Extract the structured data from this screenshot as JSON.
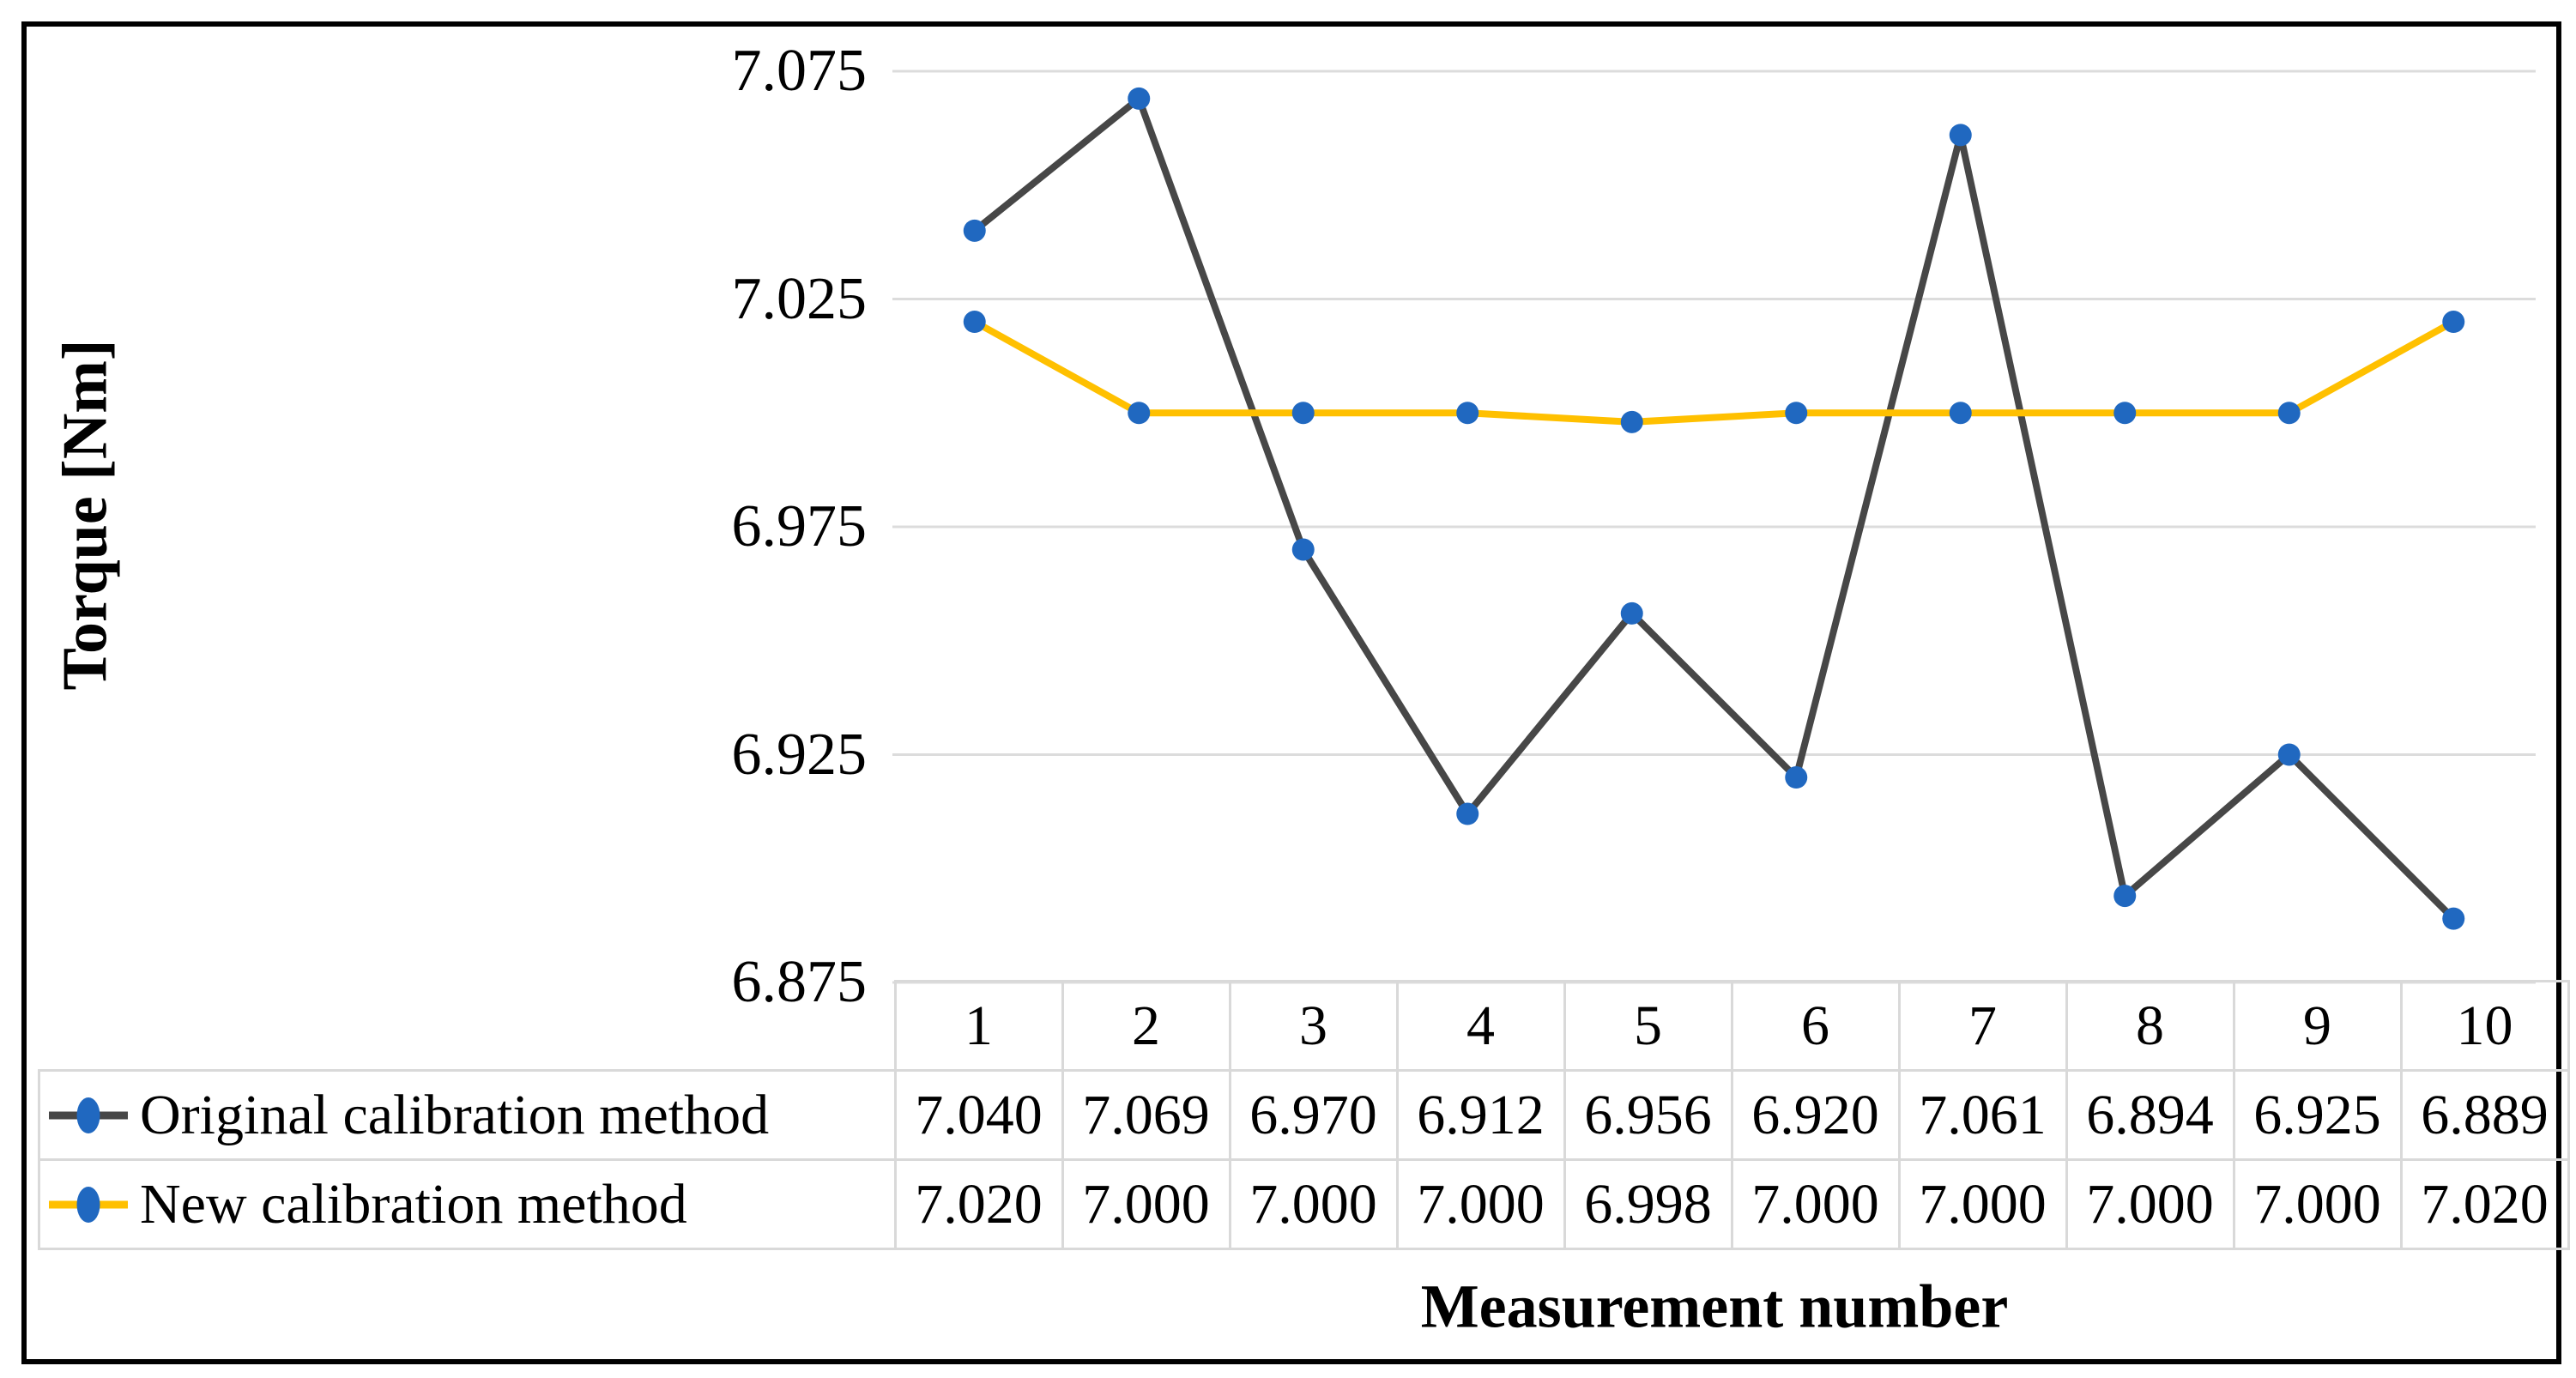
{
  "figure": {
    "background": "#ffffff",
    "border_color": "#000000"
  },
  "chart_data": {
    "type": "line",
    "title": "",
    "xlabel": "Measurement number",
    "ylabel": "Torque [Nm]",
    "categories": [
      "1",
      "2",
      "3",
      "4",
      "5",
      "6",
      "7",
      "8",
      "9",
      "10"
    ],
    "series": [
      {
        "name": "Original calibration method",
        "values": [
          7.04,
          7.069,
          6.97,
          6.912,
          6.956,
          6.92,
          7.061,
          6.894,
          6.925,
          6.889
        ],
        "line_color": "#474747",
        "marker_color": "#2068c0"
      },
      {
        "name": "New calibration method",
        "values": [
          7.02,
          7.0,
          7.0,
          7.0,
          6.998,
          7.0,
          7.0,
          7.0,
          7.0,
          7.02
        ],
        "line_color": "#ffc000",
        "marker_color": "#2068c0"
      }
    ],
    "ylim": [
      6.875,
      7.075
    ],
    "yticks": [
      "7.075",
      "7.025",
      "6.975",
      "6.925",
      "6.875"
    ],
    "value_decimals": 3,
    "grid": true,
    "gridline_color": "#dcdcdc",
    "legend_position": "table-left",
    "table_border_color": "#d9d9d9"
  }
}
